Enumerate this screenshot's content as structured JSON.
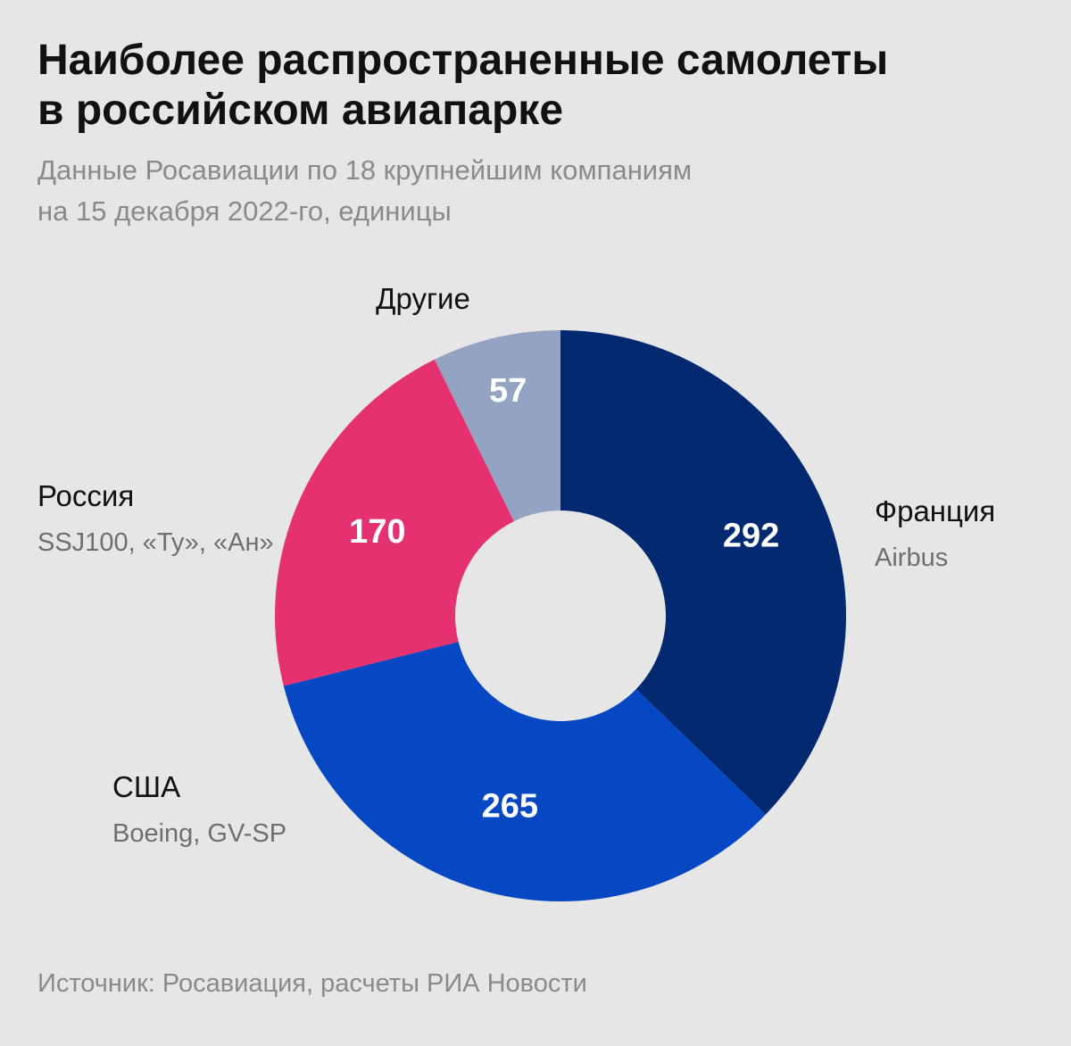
{
  "header": {
    "title_lines": [
      "Наиболее распространенные самолеты",
      "в российском авиапарке"
    ],
    "subtitle_lines": [
      "Данные Росавиации по 18 крупнейшим компаниям",
      "на 15 декабря 2022-го, единицы"
    ]
  },
  "footer": {
    "source": "Источник: Росавиация, расчеты РИА Новости"
  },
  "chart_data": {
    "type": "pie",
    "donut": true,
    "title": "Наиболее распространенные самолеты в российском авиапарке",
    "subtitle": "Данные Росавиации по 18 крупнейшим компаниям на 15 декабря 2022-го, единицы",
    "categories": [
      "Франция",
      "США",
      "Россия",
      "Другие"
    ],
    "descriptions": [
      "Airbus",
      "Boeing, GV-SP",
      "SSJ100, «Ту», «Ан»",
      ""
    ],
    "values": [
      292,
      265,
      170,
      57
    ],
    "colors": [
      "#032a70",
      "#0647c3",
      "#e53170",
      "#93a3c1"
    ]
  }
}
